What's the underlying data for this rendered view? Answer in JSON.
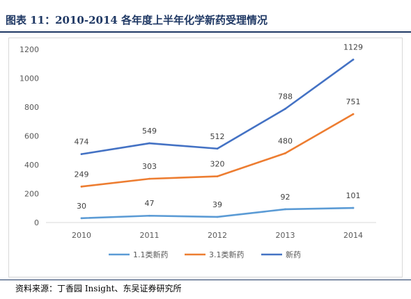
{
  "figure": {
    "title": "图表 11：2010-2014 各年度上半年化学新药受理情况",
    "source": "资料来源：丁香园 Insight、东吴证券研究所"
  },
  "chart_data": {
    "type": "line",
    "categories": [
      "2010",
      "2011",
      "2012",
      "2013",
      "2014"
    ],
    "ylim": [
      0,
      1200
    ],
    "yticks": [
      0,
      200,
      400,
      600,
      800,
      1000,
      1200
    ],
    "grid": false,
    "legend_position": "bottom",
    "series": [
      {
        "name": "1.1类新药",
        "color": "#5b9bd5",
        "values": [
          30,
          47,
          39,
          92,
          101
        ]
      },
      {
        "name": "3.1类新药",
        "color": "#ed7d31",
        "values": [
          249,
          303,
          320,
          480,
          751
        ]
      },
      {
        "name": "新药",
        "color": "#4472c4",
        "values": [
          474,
          549,
          512,
          788,
          1129
        ]
      }
    ]
  }
}
